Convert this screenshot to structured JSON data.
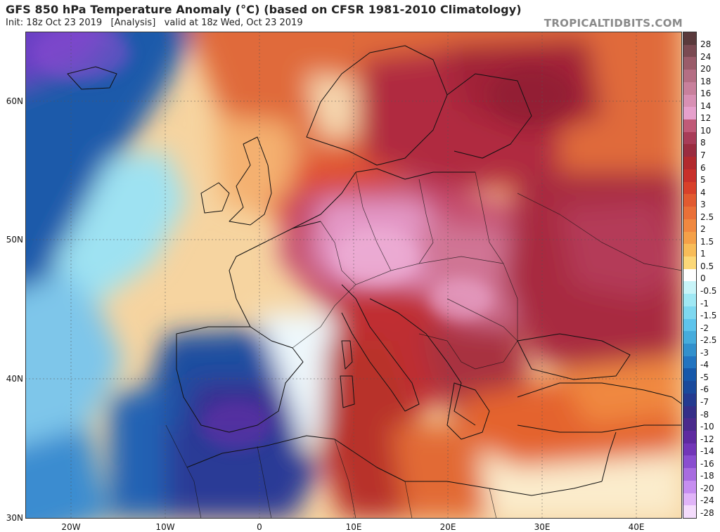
{
  "header": {
    "title": "GFS 850 hPa Temperature Anomaly (°C) (based on CFSR 1981-2010 Climatology)",
    "subtitle": "Init: 18z Oct 23 2019   [Analysis]   valid at 18z Wed, Oct 23 2019",
    "brand": "TROPICALTIDBITS.COM"
  },
  "map": {
    "lat_labels": [
      "60N",
      "50N",
      "40N",
      "30N"
    ],
    "lon_labels": [
      "20W",
      "10W",
      "0",
      "10E",
      "20E",
      "30E",
      "40E"
    ]
  },
  "colorbar": {
    "labels": [
      "28",
      "24",
      "20",
      "18",
      "16",
      "14",
      "12",
      "10",
      "8",
      "7",
      "6",
      "5",
      "4",
      "3",
      "2.5",
      "2",
      "1.5",
      "1",
      "0.5",
      "0",
      "-0.5",
      "-1",
      "-1.5",
      "-2",
      "-2.5",
      "-3",
      "-4",
      "-5",
      "-6",
      "-7",
      "-8",
      "-10",
      "-12",
      "-14",
      "-16",
      "-18",
      "-20",
      "-24",
      "-28"
    ],
    "colors": [
      "#5a3a3c",
      "#7a4a52",
      "#9a5c6a",
      "#b46e84",
      "#c8809c",
      "#d890b4",
      "#e6a0cc",
      "#c05a78",
      "#a83c58",
      "#9a2c40",
      "#b22a2e",
      "#c8302a",
      "#d8402a",
      "#e25a30",
      "#ea7038",
      "#f08840",
      "#f4a048",
      "#f8bc58",
      "#fcd878",
      "#ffffff",
      "#c8f4f8",
      "#a0e8f4",
      "#7ed8f0",
      "#5ec4ec",
      "#46acdc",
      "#3290cc",
      "#2274c0",
      "#1658aa",
      "#1a4a9c",
      "#243a90",
      "#352e88",
      "#4a2a8c",
      "#5e2aa0",
      "#7236b8",
      "#8a4ed0",
      "#a86ce0",
      "#c68ef0",
      "#e0b4f8",
      "#f4dcfc"
    ]
  },
  "legend_colors": {
    "warm_peak": "#e6a0cc",
    "warm": "#c8302a",
    "neutral": "#ffffff",
    "cold": "#1658aa",
    "cold_peak": "#5e2aa0"
  }
}
